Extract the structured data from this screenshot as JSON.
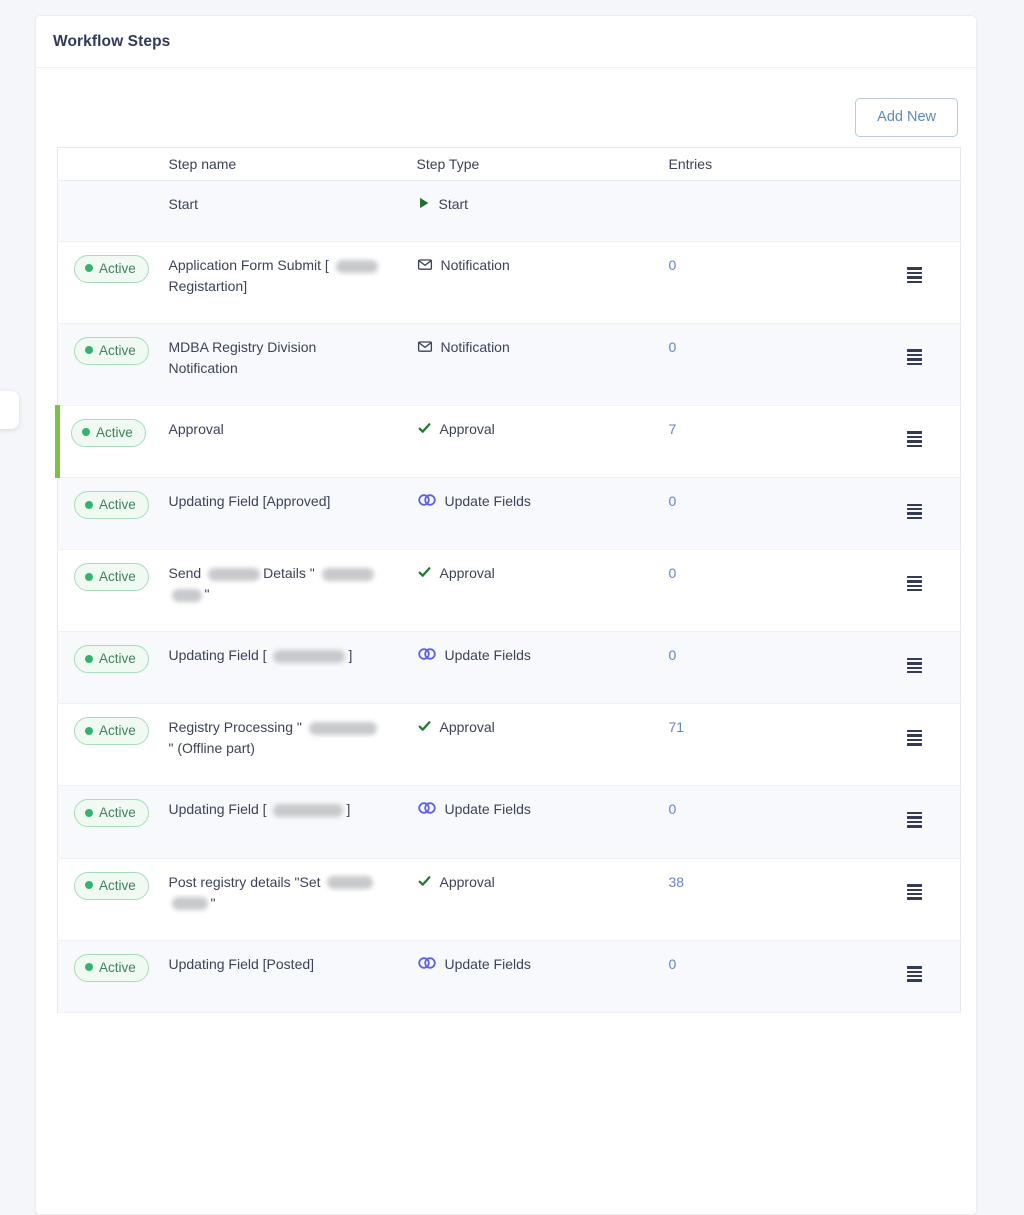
{
  "page": {
    "title": "Workflow Steps"
  },
  "toolbar": {
    "add_new_label": "Add New"
  },
  "colors": {
    "active_badge_green": "#34b36e",
    "row_highlight_green": "#7cc242",
    "entries_link_blue": "#6286c4",
    "add_new_blue": "#5f8ab8",
    "approval_check_green": "#1f7a33",
    "update_fields_indigo": "#5c61e6"
  },
  "table": {
    "columns": {
      "status": "",
      "step_name": "Step name",
      "step_type": "Step Type",
      "entries": "Entries",
      "actions": ""
    },
    "rows": [
      {
        "status": null,
        "highlight": false,
        "menu": false,
        "entries": null,
        "type": "start",
        "type_label": "Start",
        "type_icon": "play-icon",
        "name_parts": [
          {
            "text": "Start"
          }
        ]
      },
      {
        "status": "Active",
        "highlight": false,
        "menu": true,
        "entries": "0",
        "type": "notification",
        "type_label": "Notification",
        "type_icon": "envelope-icon",
        "name_parts": [
          {
            "text": "Application Form Submit ["
          },
          {
            "redact": 42
          },
          {
            "text": "Registartion]"
          }
        ]
      },
      {
        "status": "Active",
        "highlight": false,
        "menu": true,
        "entries": "0",
        "type": "notification",
        "type_label": "Notification",
        "type_icon": "envelope-icon",
        "name_parts": [
          {
            "text": "MDBA Registry Division Notification"
          }
        ]
      },
      {
        "status": "Active",
        "highlight": true,
        "menu": true,
        "entries": "7",
        "type": "approval",
        "type_label": "Approval",
        "type_icon": "check-icon",
        "name_parts": [
          {
            "text": "Approval"
          }
        ]
      },
      {
        "status": "Active",
        "highlight": false,
        "menu": true,
        "entries": "0",
        "type": "update_fields",
        "type_label": "Update Fields",
        "type_icon": "infinity-link-icon",
        "name_parts": [
          {
            "text": "Updating Field [Approved]"
          }
        ]
      },
      {
        "status": "Active",
        "highlight": false,
        "menu": true,
        "entries": "0",
        "type": "approval",
        "type_label": "Approval",
        "type_icon": "check-icon",
        "name_parts": [
          {
            "text": "Send"
          },
          {
            "redact": 52
          },
          {
            "text": "Details \""
          },
          {
            "redact": 52
          },
          {
            "redact": 30
          },
          {
            "text": "\""
          }
        ]
      },
      {
        "status": "Active",
        "highlight": false,
        "menu": true,
        "entries": "0",
        "type": "update_fields",
        "type_label": "Update Fields",
        "type_icon": "infinity-link-icon",
        "name_parts": [
          {
            "text": "Updating Field ["
          },
          {
            "redact": 72
          },
          {
            "text": "]"
          }
        ]
      },
      {
        "status": "Active",
        "highlight": false,
        "menu": true,
        "entries": "71",
        "type": "approval",
        "type_label": "Approval",
        "type_icon": "check-icon",
        "name_parts": [
          {
            "text": "Registry Processing \""
          },
          {
            "redact": 68
          },
          {
            "text": "\" (Offline part)"
          }
        ]
      },
      {
        "status": "Active",
        "highlight": false,
        "menu": true,
        "entries": "0",
        "type": "update_fields",
        "type_label": "Update Fields",
        "type_icon": "infinity-link-icon",
        "name_parts": [
          {
            "text": "Updating Field ["
          },
          {
            "redact": 70
          },
          {
            "text": "]"
          }
        ]
      },
      {
        "status": "Active",
        "highlight": false,
        "menu": true,
        "entries": "38",
        "type": "approval",
        "type_label": "Approval",
        "type_icon": "check-icon",
        "name_parts": [
          {
            "text": "Post registry details \"Set"
          },
          {
            "redact": 46
          },
          {
            "redact": 36
          },
          {
            "text": "\""
          }
        ]
      },
      {
        "status": "Active",
        "highlight": false,
        "menu": true,
        "entries": "0",
        "type": "update_fields",
        "type_label": "Update Fields",
        "type_icon": "infinity-link-icon",
        "name_parts": [
          {
            "text": "Updating Field [Posted]"
          }
        ]
      }
    ]
  }
}
